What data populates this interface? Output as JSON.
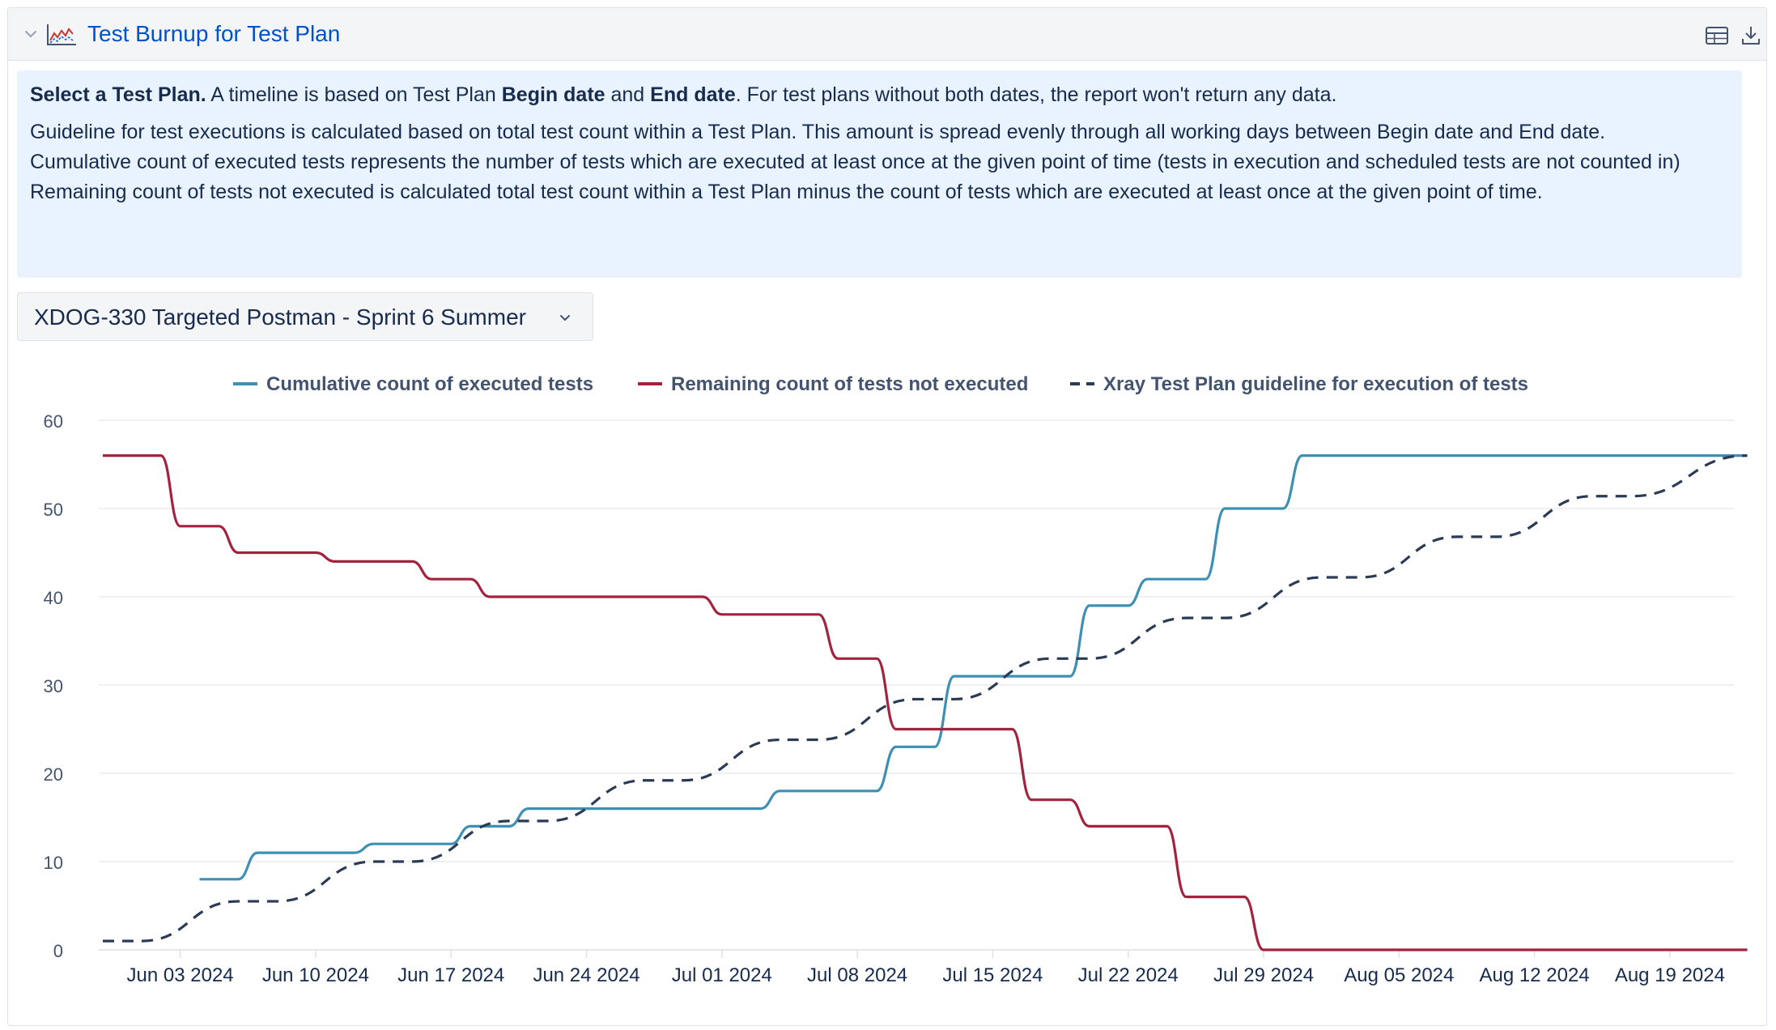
{
  "header": {
    "title": "Test Burnup for Test Plan",
    "icons": [
      "chevron-down-icon",
      "line-chart-icon",
      "table-icon",
      "download-icon"
    ]
  },
  "info": {
    "line1_bold": "Select a Test Plan.",
    "line1_part2": " A timeline is based on Test Plan ",
    "line1_begin": "Begin date",
    "line1_and": " and ",
    "line1_end": "End date",
    "line1_part3": ". For test plans without both dates, the report won't return any data.",
    "line2": "Guideline for test executions is calculated based on total test count within a Test Plan. This amount is spread evenly through all working days between Begin date and End date.",
    "line3": "Cumulative count of executed tests represents the number of tests which are executed at least once at the given point of time (tests in execution and scheduled tests are not counted in)",
    "line4": "Remaining count of tests not executed is calculated total test count within a Test Plan minus the count of tests which are executed at least once at the given point of time."
  },
  "selector": {
    "selected": "XDOG-330 Targeted Postman - Sprint 6 Summer"
  },
  "colors": {
    "executed": "#3d8fb3",
    "remaining": "#a3223d",
    "guideline": "#2b3a55",
    "grid": "#ebecf0",
    "axis_text": "#44546f"
  },
  "chart_data": {
    "type": "line",
    "title": "",
    "xlabel": "",
    "ylabel": "",
    "ylim": [
      0,
      60
    ],
    "yticks": [
      0,
      10,
      20,
      30,
      40,
      50,
      60
    ],
    "grid": true,
    "legend": "top-center",
    "x_ticks": [
      "Jun 03 2024",
      "Jun 10 2024",
      "Jun 17 2024",
      "Jun 24 2024",
      "Jul 01 2024",
      "Jul 08 2024",
      "Jul 15 2024",
      "Jul 22 2024",
      "Jul 29 2024",
      "Aug 05 2024",
      "Aug 12 2024",
      "Aug 19 2024"
    ],
    "x_start": "2024-05-30",
    "x_end": "2024-08-23",
    "series": [
      {
        "name": "Cumulative count of executed tests",
        "style": "solid",
        "points": [
          [
            "2024-06-04",
            8
          ],
          [
            "2024-06-06",
            8
          ],
          [
            "2024-06-07",
            11
          ],
          [
            "2024-06-12",
            11
          ],
          [
            "2024-06-13",
            12
          ],
          [
            "2024-06-17",
            12
          ],
          [
            "2024-06-18",
            14
          ],
          [
            "2024-06-20",
            14
          ],
          [
            "2024-06-21",
            16
          ],
          [
            "2024-07-03",
            16
          ],
          [
            "2024-07-04",
            18
          ],
          [
            "2024-07-09",
            18
          ],
          [
            "2024-07-10",
            23
          ],
          [
            "2024-07-12",
            23
          ],
          [
            "2024-07-13",
            31
          ],
          [
            "2024-07-19",
            31
          ],
          [
            "2024-07-20",
            39
          ],
          [
            "2024-07-22",
            39
          ],
          [
            "2024-07-23",
            42
          ],
          [
            "2024-07-26",
            42
          ],
          [
            "2024-07-27",
            50
          ],
          [
            "2024-07-30",
            50
          ],
          [
            "2024-07-31",
            56
          ],
          [
            "2024-08-23",
            56
          ]
        ]
      },
      {
        "name": "Remaining count of tests not executed",
        "style": "solid",
        "points": [
          [
            "2024-05-30",
            56
          ],
          [
            "2024-06-02",
            56
          ],
          [
            "2024-06-03",
            48
          ],
          [
            "2024-06-05",
            48
          ],
          [
            "2024-06-06",
            45
          ],
          [
            "2024-06-10",
            45
          ],
          [
            "2024-06-11",
            44
          ],
          [
            "2024-06-15",
            44
          ],
          [
            "2024-06-16",
            42
          ],
          [
            "2024-06-18",
            42
          ],
          [
            "2024-06-19",
            40
          ],
          [
            "2024-06-30",
            40
          ],
          [
            "2024-07-01",
            38
          ],
          [
            "2024-07-06",
            38
          ],
          [
            "2024-07-07",
            33
          ],
          [
            "2024-07-09",
            33
          ],
          [
            "2024-07-10",
            25
          ],
          [
            "2024-07-16",
            25
          ],
          [
            "2024-07-17",
            17
          ],
          [
            "2024-07-19",
            17
          ],
          [
            "2024-07-20",
            14
          ],
          [
            "2024-07-24",
            14
          ],
          [
            "2024-07-25",
            6
          ],
          [
            "2024-07-28",
            6
          ],
          [
            "2024-07-29",
            0
          ],
          [
            "2024-08-23",
            0
          ]
        ]
      },
      {
        "name": "Xray Test Plan guideline for execution of tests",
        "style": "dashed",
        "points": [
          [
            "2024-05-30",
            1
          ],
          [
            "2024-06-01",
            1
          ],
          [
            "2024-06-06",
            5.5
          ],
          [
            "2024-06-08",
            5.5
          ],
          [
            "2024-06-13",
            10
          ],
          [
            "2024-06-15",
            10
          ],
          [
            "2024-06-20",
            14.6
          ],
          [
            "2024-06-22",
            14.6
          ],
          [
            "2024-06-27",
            19.2
          ],
          [
            "2024-06-29",
            19.2
          ],
          [
            "2024-07-04",
            23.8
          ],
          [
            "2024-07-06",
            23.8
          ],
          [
            "2024-07-11",
            28.4
          ],
          [
            "2024-07-13",
            28.4
          ],
          [
            "2024-07-18",
            33
          ],
          [
            "2024-07-20",
            33
          ],
          [
            "2024-07-25",
            37.6
          ],
          [
            "2024-07-27",
            37.6
          ],
          [
            "2024-08-01",
            42.2
          ],
          [
            "2024-08-03",
            42.2
          ],
          [
            "2024-08-08",
            46.8
          ],
          [
            "2024-08-10",
            46.8
          ],
          [
            "2024-08-15",
            51.4
          ],
          [
            "2024-08-17",
            51.4
          ],
          [
            "2024-08-23",
            56
          ]
        ]
      }
    ]
  }
}
